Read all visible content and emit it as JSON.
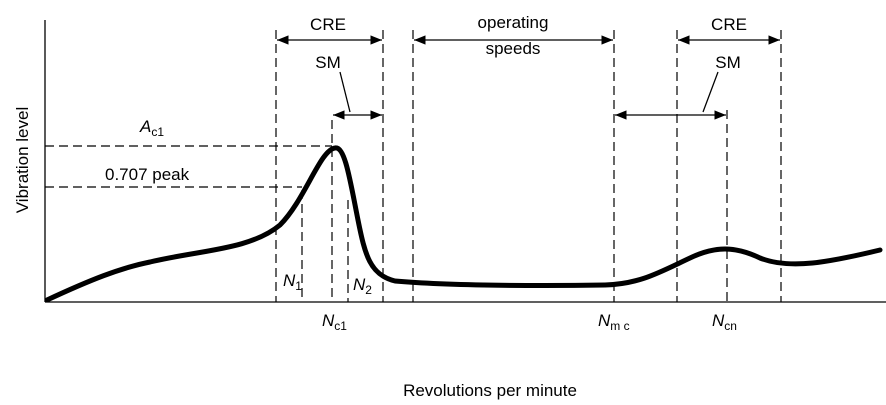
{
  "y_axis_label": "Vibration level",
  "x_axis_label": "Revolutions per minute",
  "cre_left": "CRE",
  "cre_right": "CRE",
  "sm_left": "SM",
  "sm_right": "SM",
  "operating_speeds": [
    "operating",
    "speeds"
  ],
  "peak_amplitude": {
    "main": "A",
    "sub": "c1"
  },
  "half_power": "0.707 peak",
  "n1": {
    "main": "N",
    "sub": "1"
  },
  "n2": {
    "main": "N",
    "sub": "2"
  },
  "nc1": {
    "main": "N",
    "sub": "c1"
  },
  "nmc": {
    "main": "N",
    "sub": "m c"
  },
  "ncn": {
    "main": "N",
    "sub": "cn"
  }
}
